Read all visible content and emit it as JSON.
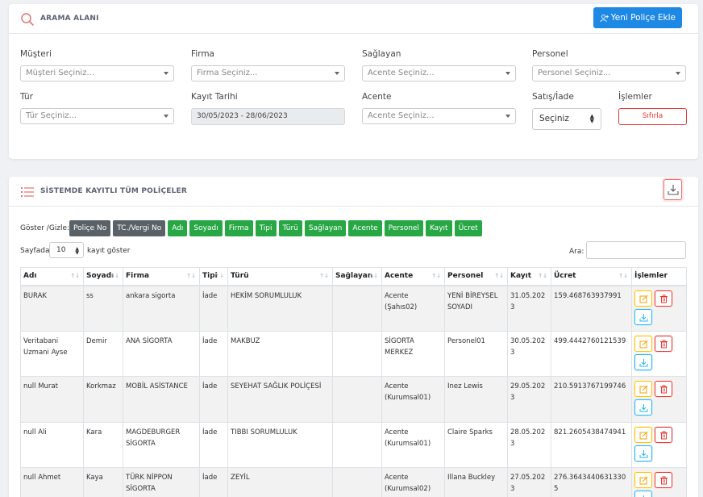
{
  "search_panel": {
    "title": "ARAMA ALANI",
    "new_policy_button": "Yeni Poliçe Ekle",
    "fields": {
      "musteri": {
        "label": "Müşteri",
        "placeholder": "Müşteri Seçiniz..."
      },
      "firma": {
        "label": "Firma",
        "placeholder": "Firma Seçiniz..."
      },
      "saglayan": {
        "label": "Sağlayan",
        "placeholder": "Acente Seçiniz..."
      },
      "personel": {
        "label": "Personel",
        "placeholder": "Personel Seçiniz..."
      },
      "tur": {
        "label": "Tür",
        "placeholder": "Tür Seçiniz..."
      },
      "kayit_tarihi": {
        "label": "Kayıt Tarihi",
        "value": "30/05/2023 - 28/06/2023"
      },
      "acente": {
        "label": "Acente",
        "placeholder": "Acente Seçiniz..."
      },
      "satis_iade": {
        "label": "Satış/İade",
        "value": "Seçiniz"
      },
      "islemler": {
        "label": "İşlemler",
        "reset_button": "Sıfırla"
      }
    }
  },
  "list_panel": {
    "title": "SİSTEMDE KAYITLI TÜM POLİÇELER",
    "toggle_label": "Göster /Gizle:",
    "toggles": [
      {
        "label": "Poliçe No",
        "active": false
      },
      {
        "label": "TC./Vergi No",
        "active": false
      },
      {
        "label": "Adı",
        "active": true
      },
      {
        "label": "Soyadı",
        "active": true
      },
      {
        "label": "Firma",
        "active": true
      },
      {
        "label": "Tipi",
        "active": true
      },
      {
        "label": "Türü",
        "active": true
      },
      {
        "label": "Sağlayan",
        "active": true
      },
      {
        "label": "Acente",
        "active": true
      },
      {
        "label": "Personel",
        "active": true
      },
      {
        "label": "Kayıt",
        "active": true
      },
      {
        "label": "Ücret",
        "active": true
      }
    ],
    "page_length_prefix": "Sayfada",
    "page_length_value": "10",
    "page_length_suffix": "kayıt göster",
    "search_label": "Ara:",
    "columns": [
      "Adı",
      "Soyadı",
      "Firma",
      "Tipi",
      "Türü",
      "Sağlayan",
      "Acente",
      "Personel",
      "Kayıt",
      "Ücret",
      "İşlemler"
    ],
    "rows": [
      {
        "adi": "BURAK",
        "soyadi": "ss",
        "firma": "ankara sigorta",
        "tipi": "İade",
        "turu": "HEKİM SORUMLULUK",
        "saglayan": "",
        "acente": "Acente (Şahıs02)",
        "personel": "YENİ BİREYSEL SOYADI",
        "kayit": "31.05.2023",
        "ucret": "159.468763937991"
      },
      {
        "adi": "Veritabani Uzmani Ayse",
        "soyadi": "Demir",
        "firma": "ANA SİGORTA",
        "tipi": "İade",
        "turu": "MAKBUZ",
        "saglayan": "",
        "acente": "SİGORTA MERKEZ",
        "personel": "Personel01",
        "kayit": "30.05.2023",
        "ucret": "499.4442760121539"
      },
      {
        "adi": "null Murat",
        "soyadi": "Korkmaz",
        "firma": "MOBİL ASİSTANCE",
        "tipi": "İade",
        "turu": "SEYEHAT SAĞLIK POLİÇESİ",
        "saglayan": "",
        "acente": "Acente (Kurumsal01)",
        "personel": "Inez Lewis",
        "kayit": "29.05.2023",
        "ucret": "210.5913767199746"
      },
      {
        "adi": "null Ali",
        "soyadi": "Kara",
        "firma": "MAGDEBURGER SİGORTA",
        "tipi": "İade",
        "turu": "TIBBI SORUMLULUK",
        "saglayan": "",
        "acente": "Acente (Kurumsal01)",
        "personel": "Claire Sparks",
        "kayit": "28.05.2023",
        "ucret": "821.2605438474941"
      },
      {
        "adi": "null Ahmet",
        "soyadi": "Kaya",
        "firma": "TÜRK NİPPON SİGORTA",
        "tipi": "İade",
        "turu": "ZEYİL",
        "saglayan": "",
        "acente": "Acente (Kurumsal02)",
        "personel": "Illana Buckley",
        "kayit": "27.05.2023",
        "ucret": "276.36434406313305"
      }
    ]
  },
  "colors": {
    "primary": "#1e88e5",
    "success": "#28a745",
    "secondary": "#5a6268",
    "danger": "#e53935",
    "warning": "#ffc107",
    "info": "#29b6f6"
  }
}
